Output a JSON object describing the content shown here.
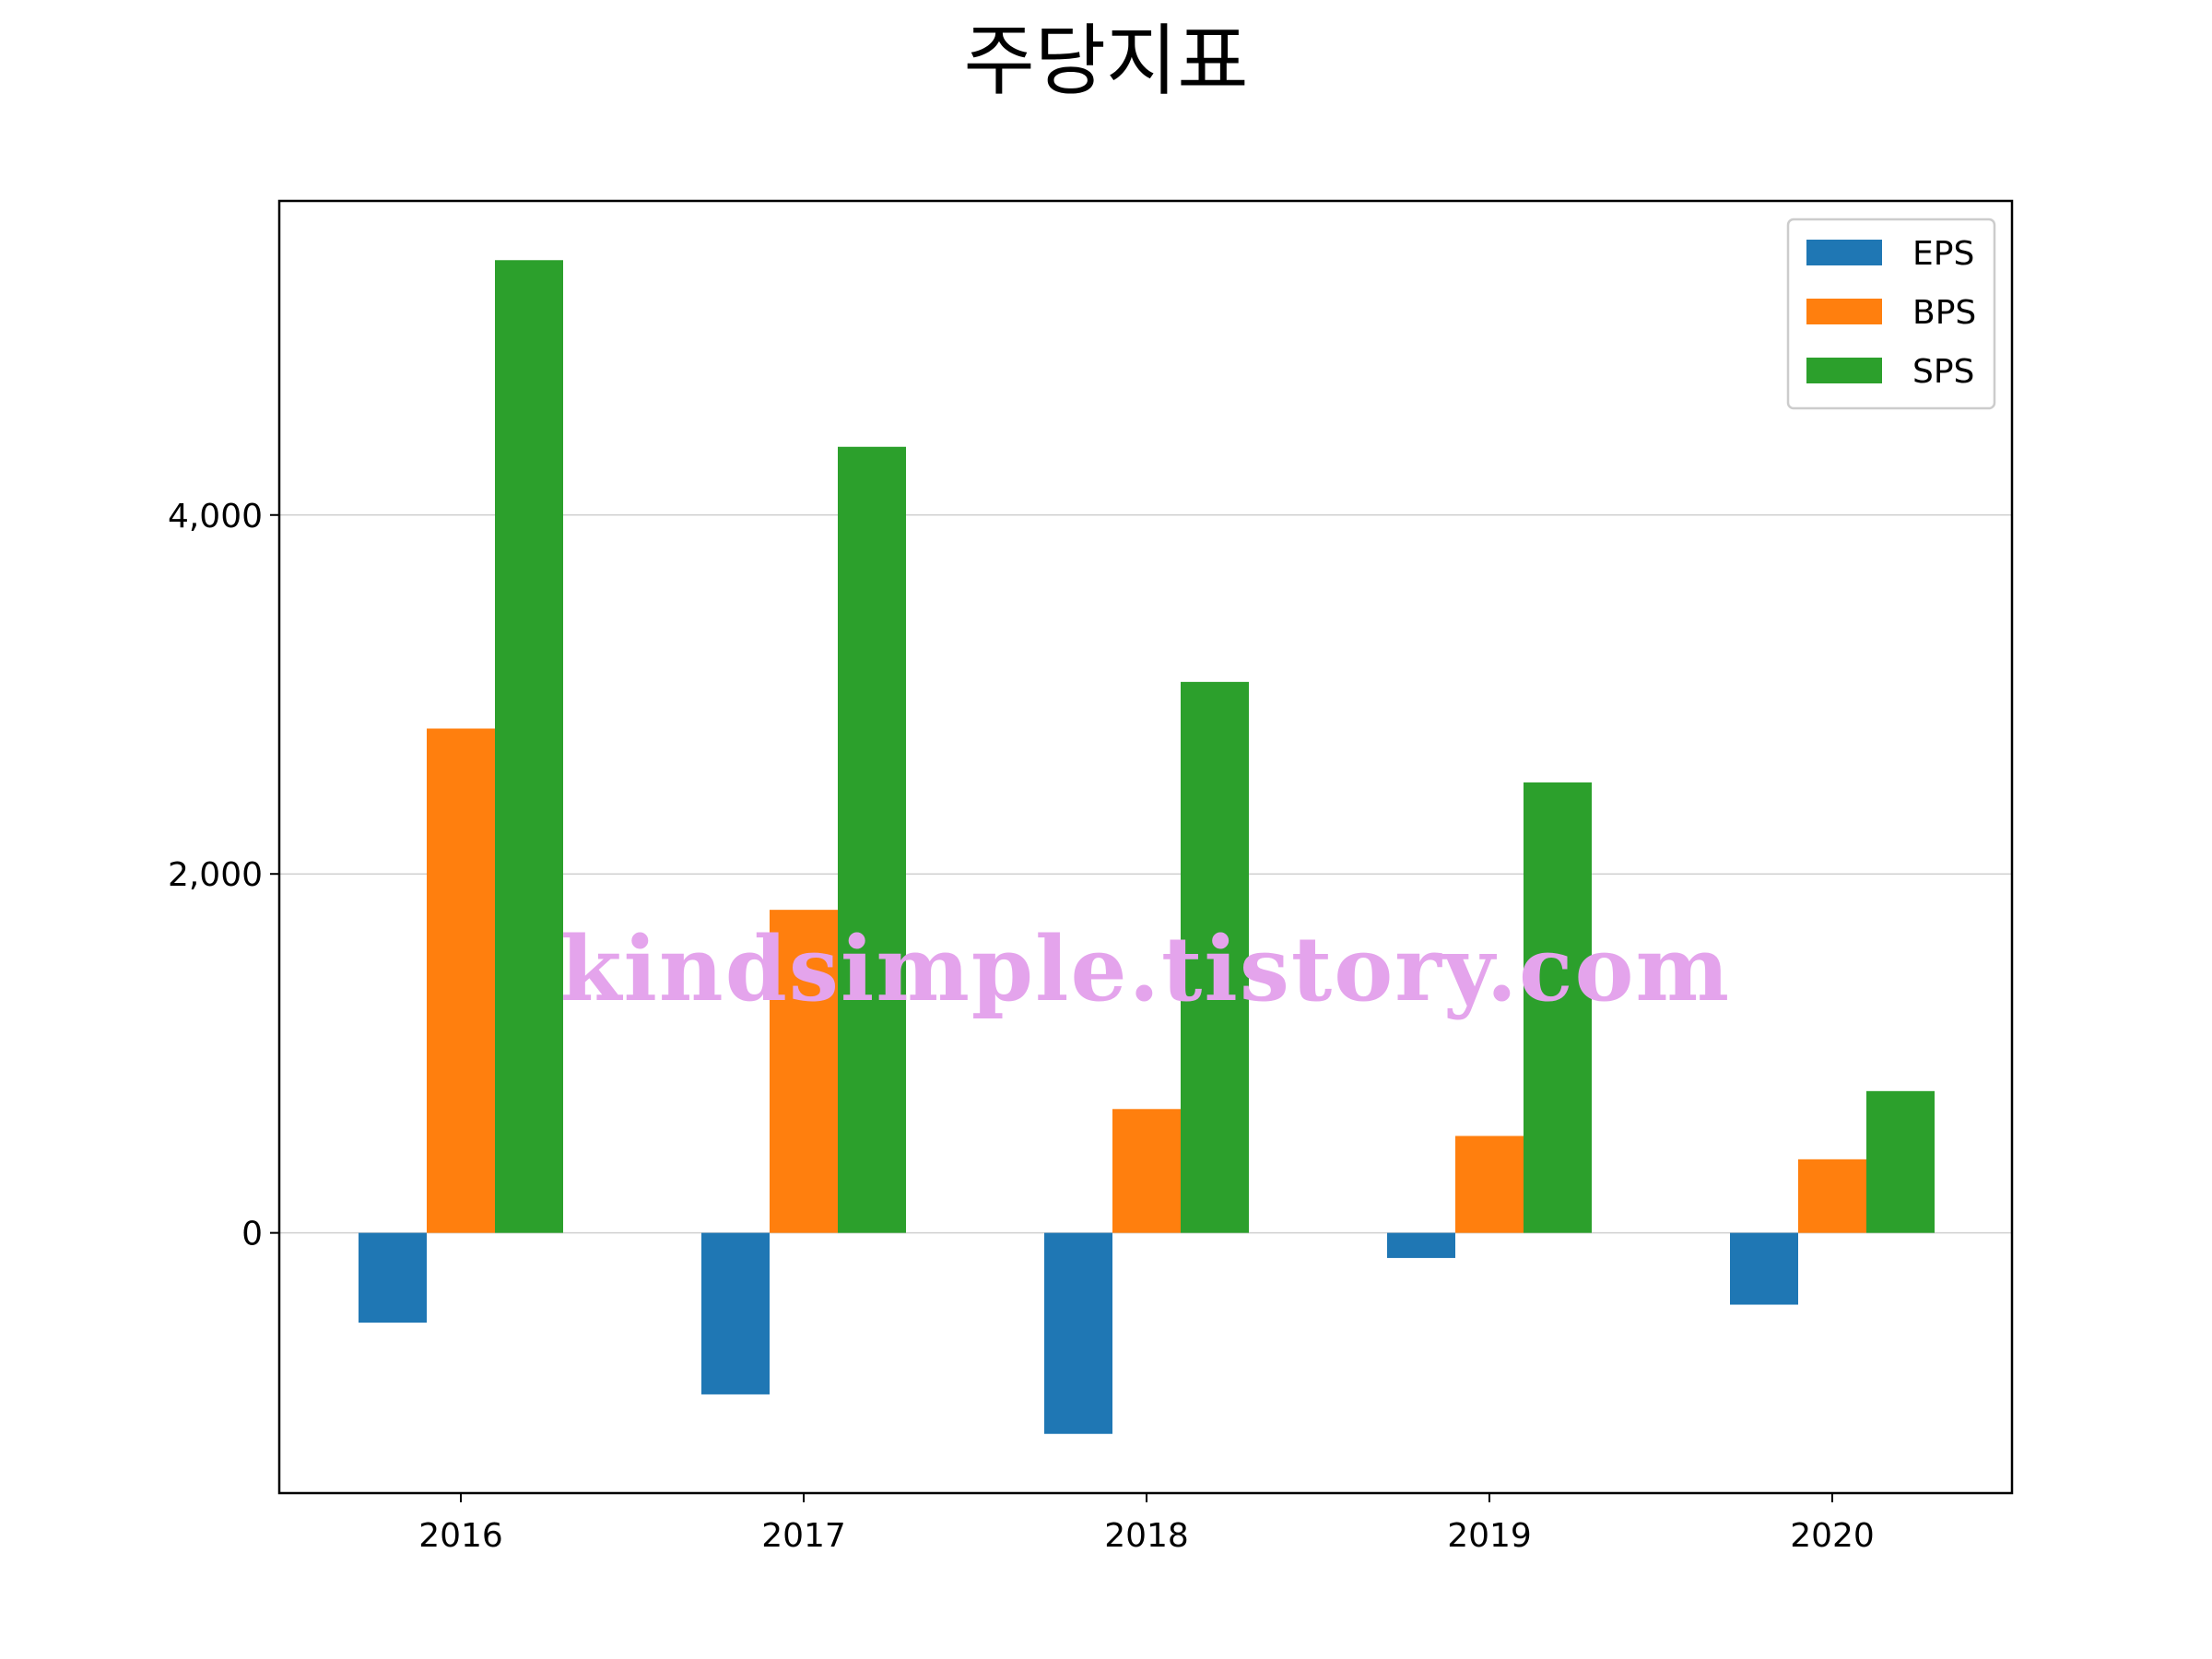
{
  "chart_data": {
    "type": "bar",
    "title": "주당지표",
    "xlabel": "",
    "ylabel": "",
    "categories": [
      "2016",
      "2017",
      "2018",
      "2019",
      "2020"
    ],
    "series": [
      {
        "name": "EPS",
        "color": "#1f77b4",
        "values": [
          -500,
          -900,
          -1120,
          -140,
          -400
        ]
      },
      {
        "name": "BPS",
        "color": "#ff7f0e",
        "values": [
          2810,
          1800,
          690,
          540,
          410
        ]
      },
      {
        "name": "SPS",
        "color": "#2ca02c",
        "values": [
          5420,
          4380,
          3070,
          2510,
          790
        ]
      }
    ],
    "ylim": [
      -1450,
      5750
    ],
    "yticks": [
      0,
      2000,
      4000
    ],
    "ytick_labels": [
      "0",
      "2,000",
      "4,000"
    ],
    "grid": "horizontal",
    "legend_position": "top-right",
    "watermark": "kindsimple.tistory.com"
  }
}
